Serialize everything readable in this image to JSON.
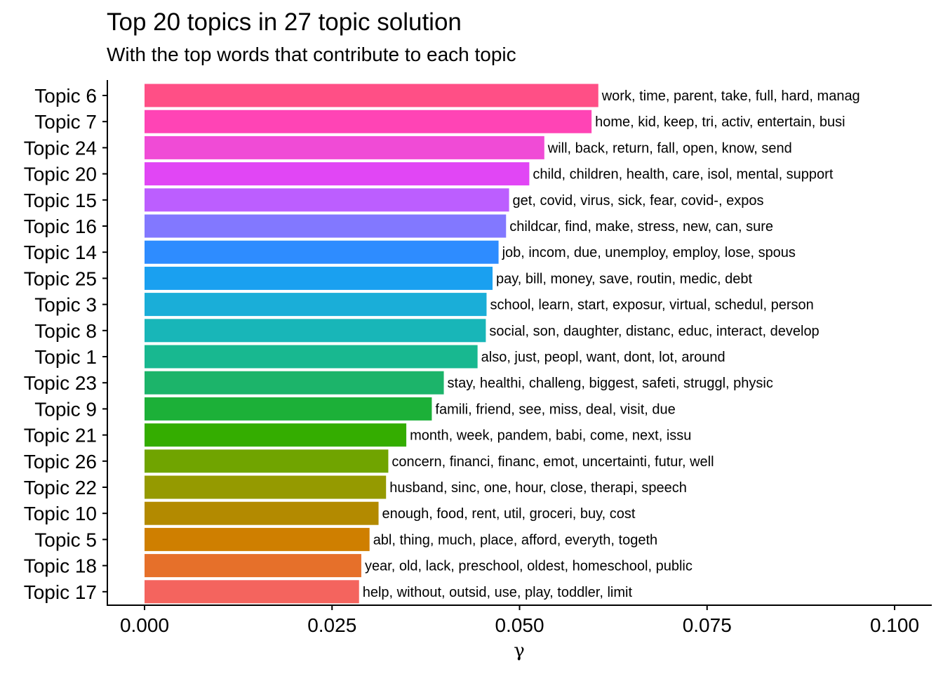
{
  "chart_data": {
    "type": "bar",
    "orientation": "horizontal",
    "title": "Top 20 topics in 27 topic solution",
    "subtitle": "With the top words that contribute to each topic",
    "xlabel": "γ",
    "ylabel": "",
    "xlim": [
      0,
      0.1
    ],
    "xticks": [
      0.0,
      0.025,
      0.05,
      0.075,
      0.1
    ],
    "xtick_labels": [
      "0.000",
      "0.025",
      "0.050",
      "0.075",
      "0.100"
    ],
    "grid": false,
    "legend": "none",
    "categories": [
      "Topic 6",
      "Topic 7",
      "Topic 24",
      "Topic 20",
      "Topic 15",
      "Topic 16",
      "Topic 14",
      "Topic 25",
      "Topic 3",
      "Topic 8",
      "Topic 1",
      "Topic 23",
      "Topic 9",
      "Topic 21",
      "Topic 26",
      "Topic 22",
      "Topic 10",
      "Topic 5",
      "Topic 18",
      "Topic 17"
    ],
    "values": [
      0.0605,
      0.0596,
      0.0533,
      0.0513,
      0.0486,
      0.0482,
      0.0472,
      0.0464,
      0.0456,
      0.0455,
      0.0444,
      0.0399,
      0.0383,
      0.0349,
      0.0325,
      0.0322,
      0.0312,
      0.03,
      0.0289,
      0.0286
    ],
    "labels": [
      "work, time, parent, take, full, hard, manag",
      "home, kid, keep, tri, activ, entertain, busi",
      "will, back, return, fall, open, know, send",
      "child, children, health, care, isol, mental, support",
      "get, covid, virus, sick, fear, covid-, expos",
      "childcar, find, make, stress, new, can, sure",
      "job, incom, due, unemploy, employ, lose, spous",
      "pay, bill, money, save, routin, medic, debt",
      "school, learn, start, exposur, virtual, schedul, person",
      "social, son, daughter, distanc, educ, interact, develop",
      "also, just, peopl, want, dont, lot, around",
      "stay, healthi, challeng, biggest, safeti, struggl, physic",
      "famili, friend, see, miss, deal, visit, due",
      "month, week, pandem, babi, come, next, issu",
      "concern, financi, financ, emot, uncertainti, futur, well",
      "husband, sinc, one, hour, close, therapi, speech",
      "enough, food, rent, util, groceri, buy, cost",
      "abl, thing, much, place, afford, everyth, togeth",
      "year, old, lack, preschool, oldest, homeschool, public",
      "help, without, outsid, use, play, toddler, limit"
    ],
    "colors": [
      "#FF4F86",
      "#FF44B5",
      "#F04BD6",
      "#E146F5",
      "#BC5EFF",
      "#8278FF",
      "#2E8CFF",
      "#1AA0F0",
      "#1AAED8",
      "#18B6B8",
      "#18B890",
      "#1CB46A",
      "#1CB038",
      "#34AD00",
      "#70A400",
      "#959A00",
      "#B38A00",
      "#CF7F00",
      "#E6702A",
      "#F4645E"
    ]
  }
}
